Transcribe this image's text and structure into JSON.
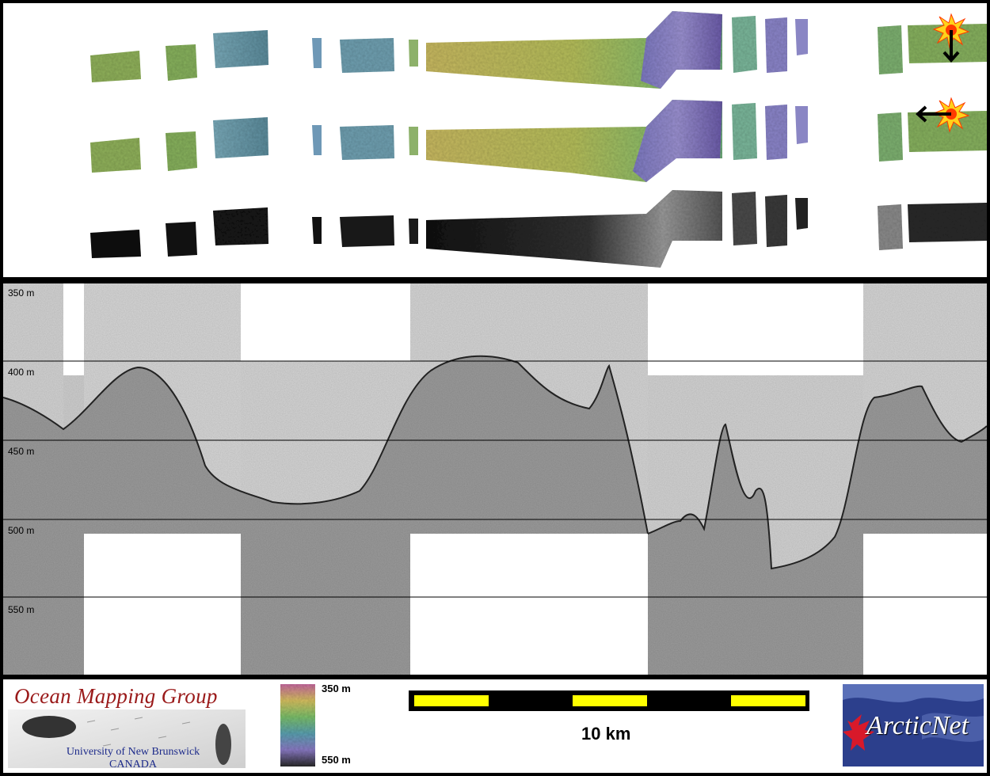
{
  "top_panel": {
    "rows": [
      {
        "name": "bathymetry-sun-north",
        "light_arrow": "down-arrow-icon"
      },
      {
        "name": "bathymetry-sun-east",
        "light_arrow": "left-arrow-icon"
      },
      {
        "name": "backscatter-greyscale",
        "light_arrow": ""
      }
    ],
    "sun_icon": "sun-icon"
  },
  "profile_panel": {
    "depth_ticks": [
      "350 m",
      "400 m",
      "450 m",
      "500 m",
      "550 m"
    ]
  },
  "footer": {
    "org_title": "Ocean Mapping Group",
    "org_line1": "University of New Brunswick",
    "org_line2": "CANADA",
    "colorbar_top": "350 m",
    "colorbar_bottom": "550 m",
    "scale_label": "10 km",
    "partner_logo_text": "ArcticNet",
    "colors": {
      "scale_yellow": "#ffff00",
      "omg_red": "#9a1a1a",
      "unb_blue": "#1c2a8a",
      "arcticnet_bg": "#2c3f8c",
      "maple_red": "#d8192a"
    }
  }
}
